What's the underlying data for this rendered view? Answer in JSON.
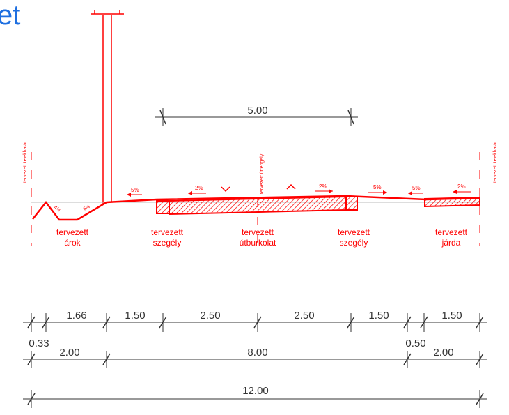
{
  "title": "et",
  "colors": {
    "accent": "#ff0000",
    "dimension": "#333333",
    "title": "#1e6fe0"
  },
  "boundary_labels": {
    "left": "tervezett telekhatár",
    "right": "tervezett telekhatár"
  },
  "axis_label": "tervezett úttengely",
  "top_dimension": "5.00",
  "slopes": {
    "shoulder": "5%",
    "lane_left": "2%",
    "lane_right": "2%",
    "right_shoulder": "5%",
    "walk_edge": "5%",
    "sidewalk": "2%",
    "ditch_left": "4/4",
    "ditch_right": "6/4"
  },
  "elements": [
    {
      "line1": "tervezett",
      "line2": "árok"
    },
    {
      "line1": "tervezett",
      "line2": "szegély"
    },
    {
      "line1": "tervezett",
      "line2": "útburkolat"
    },
    {
      "line1": "tervezett",
      "line2": "szegély"
    },
    {
      "line1": "tervezett",
      "line2": "járda"
    }
  ],
  "dims_row1": [
    "0.33",
    "1.66",
    "1.50",
    "2.50",
    "2.50",
    "1.50",
    "0.50",
    "1.50"
  ],
  "dims_row2": [
    "2.00",
    "8.00",
    "2.00"
  ],
  "total": "12.00"
}
